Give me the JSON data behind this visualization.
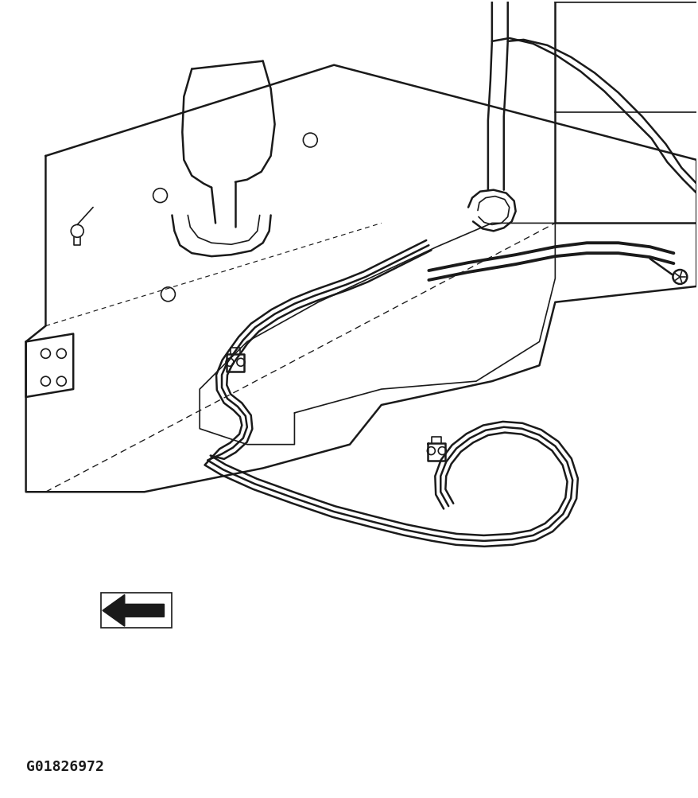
{
  "figure_id": "G01826972",
  "bg_color": "#ffffff",
  "line_color": "#1a1a1a",
  "fig_width": 8.79,
  "fig_height": 10.04,
  "dpi": 100,
  "lw_thin": 1.2,
  "lw_med": 1.8,
  "lw_tube": 2.8,
  "lw_thick": 3.5
}
